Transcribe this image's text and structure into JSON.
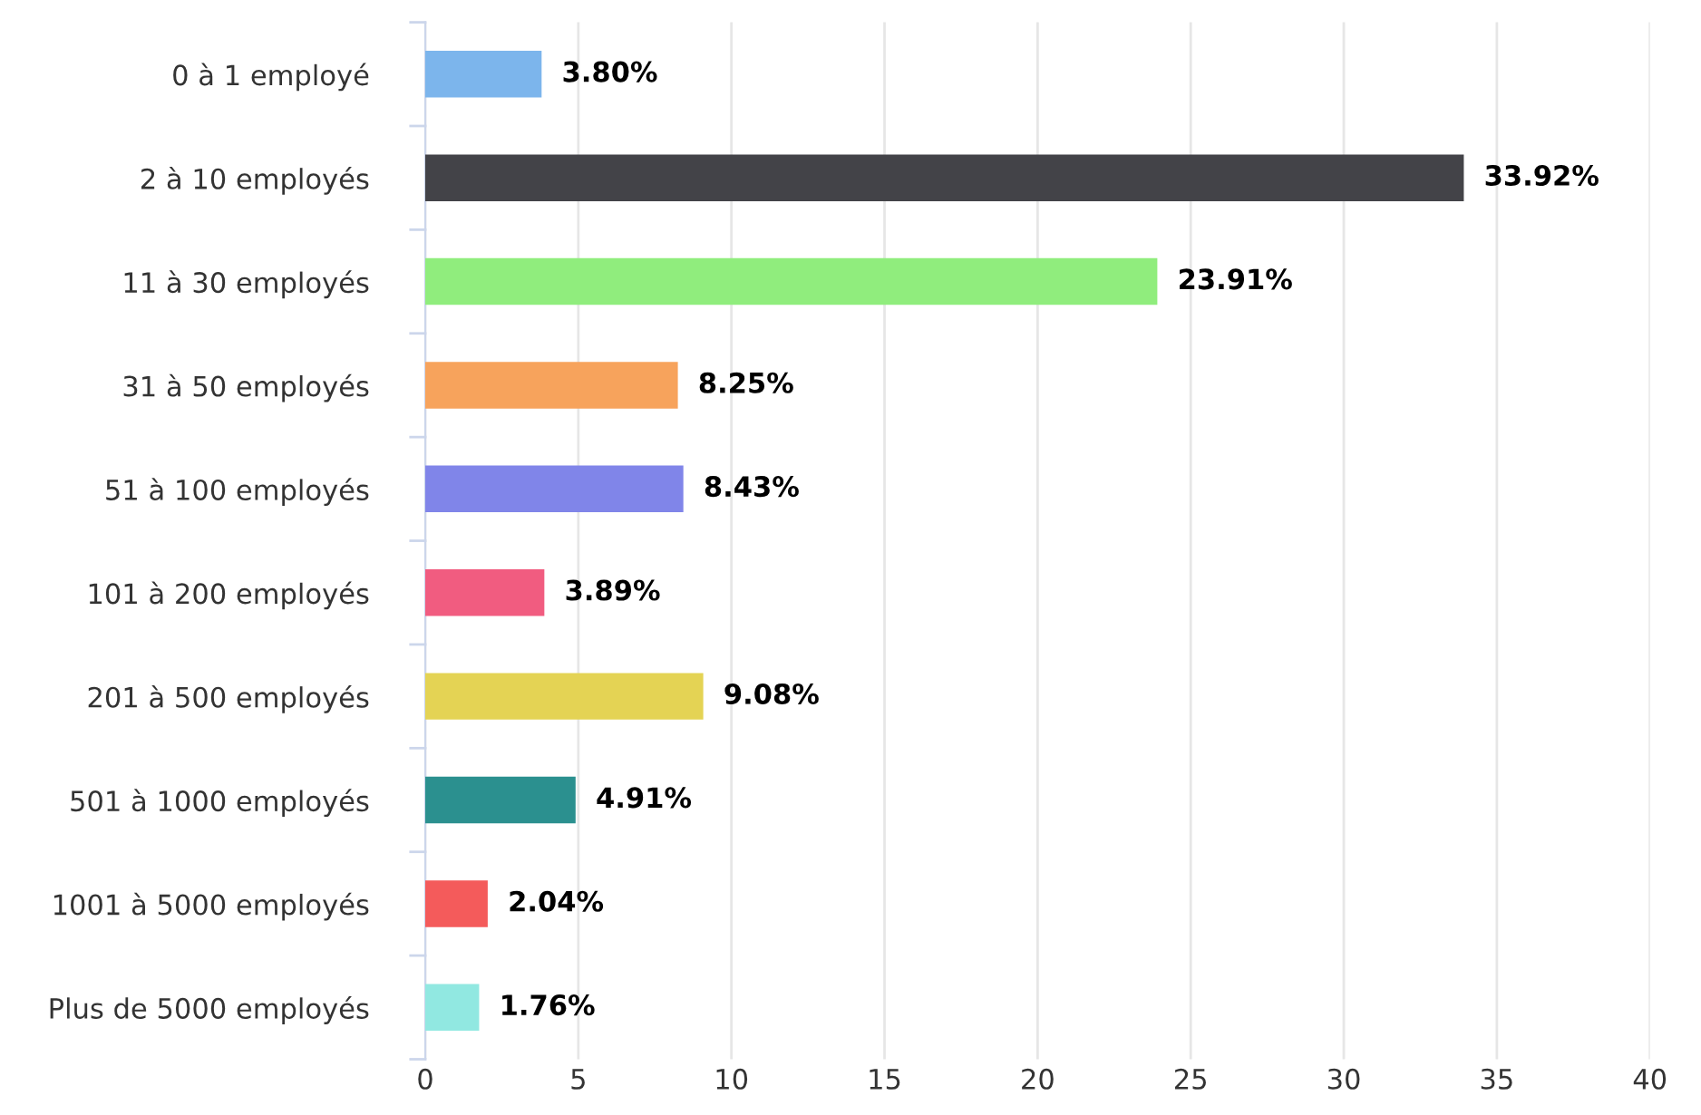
{
  "chart_data": {
    "type": "bar",
    "orientation": "horizontal",
    "categories": [
      "0 à 1 employé",
      "2 à 10 employés",
      "11 à 30 employés",
      "31 à 50 employés",
      "51 à 100 employés",
      "101 à 200 employés",
      "201 à 500 employés",
      "501 à 1000 employés",
      "1001 à 5000 employés",
      "Plus de 5000 employés"
    ],
    "values": [
      3.8,
      33.92,
      23.91,
      8.25,
      8.43,
      3.89,
      9.08,
      4.91,
      2.04,
      1.76
    ],
    "value_labels": [
      "3.80%",
      "33.92%",
      "23.91%",
      "8.25%",
      "8.43%",
      "3.89%",
      "9.08%",
      "4.91%",
      "2.04%",
      "1.76%"
    ],
    "colors": [
      "#7cb5ec",
      "#434348",
      "#90ed7d",
      "#f7a35c",
      "#8085e9",
      "#f15c80",
      "#e4d354",
      "#2b908f",
      "#f45b5b",
      "#91e8e1"
    ],
    "xlim": [
      0,
      40
    ],
    "xticks": [
      0,
      5,
      10,
      15,
      20,
      25,
      30,
      35,
      40
    ],
    "grid": "x",
    "legend": false
  }
}
